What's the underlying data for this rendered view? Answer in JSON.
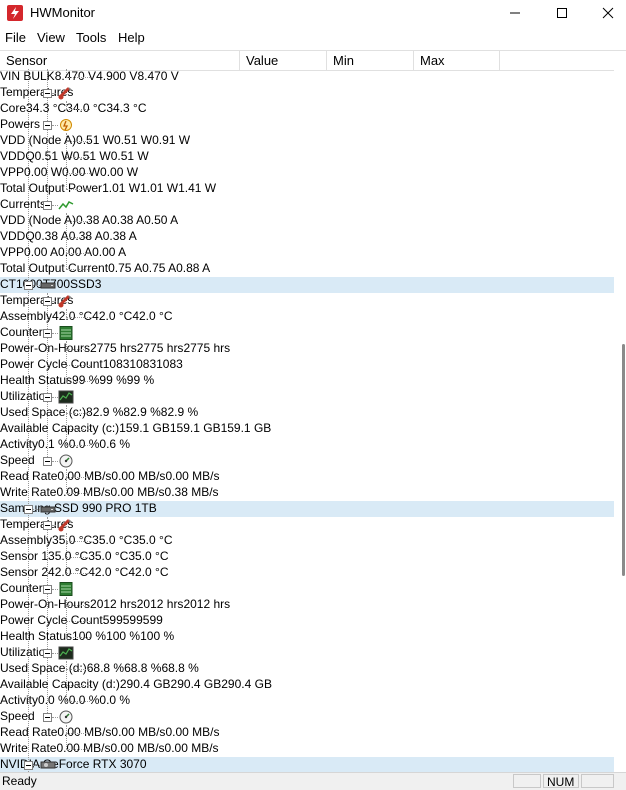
{
  "window": {
    "title": "HWMonitor"
  },
  "menu": [
    "File",
    "View",
    "Tools",
    "Help"
  ],
  "columns": {
    "sensor": "Sensor",
    "value": "Value",
    "min": "Min",
    "max": "Max"
  },
  "rows": [
    {
      "label": "VIN BULK",
      "level": 3,
      "value": "8.470 V",
      "min": "4.900 V",
      "max": "8.470 V"
    },
    {
      "label": "Temperatures",
      "level": 2,
      "icon": "thermometer-icon"
    },
    {
      "label": "Core",
      "level": 3,
      "value": "34.3 °C",
      "min": "34.0 °C",
      "max": "34.3 °C"
    },
    {
      "label": "Powers",
      "level": 2,
      "icon": "power-icon"
    },
    {
      "label": "VDD (Node A)",
      "level": 3,
      "value": "0.51 W",
      "min": "0.51 W",
      "max": "0.91 W"
    },
    {
      "label": "VDDQ",
      "level": 3,
      "value": "0.51 W",
      "min": "0.51 W",
      "max": "0.51 W"
    },
    {
      "label": "VPP",
      "level": 3,
      "value": "0.00 W",
      "min": "0.00 W",
      "max": "0.00 W"
    },
    {
      "label": "Total Output Power",
      "level": 3,
      "value": "1.01 W",
      "min": "1.01 W",
      "max": "1.41 W"
    },
    {
      "label": "Currents",
      "level": 2,
      "icon": "current-icon"
    },
    {
      "label": "VDD (Node A)",
      "level": 3,
      "value": "0.38 A",
      "min": "0.38 A",
      "max": "0.50 A"
    },
    {
      "label": "VDDQ",
      "level": 3,
      "value": "0.38 A",
      "min": "0.38 A",
      "max": "0.38 A"
    },
    {
      "label": "VPP",
      "level": 3,
      "value": "0.00 A",
      "min": "0.00 A",
      "max": "0.00 A"
    },
    {
      "label": "Total Output Current",
      "level": 3,
      "value": "0.75 A",
      "min": "0.75 A",
      "max": "0.88 A"
    },
    {
      "label": "CT1000T700SSD3",
      "level": 1,
      "icon": "drive-icon",
      "highlight": true
    },
    {
      "label": "Temperatures",
      "level": 2,
      "icon": "thermometer-icon"
    },
    {
      "label": "Assembly",
      "level": 3,
      "value": "42.0 °C",
      "min": "42.0 °C",
      "max": "42.0 °C"
    },
    {
      "label": "Counters",
      "level": 2,
      "icon": "counter-icon"
    },
    {
      "label": "Power-On-Hours",
      "level": 3,
      "value": "2775 hrs",
      "min": "2775 hrs",
      "max": "2775 hrs"
    },
    {
      "label": "Power Cycle Count",
      "level": 3,
      "value": "1083",
      "min": "1083",
      "max": "1083"
    },
    {
      "label": "Health Status",
      "level": 3,
      "value": "99 %",
      "min": "99 %",
      "max": "99 %"
    },
    {
      "label": "Utilization",
      "level": 2,
      "icon": "utilization-icon"
    },
    {
      "label": "Used Space (c:)",
      "level": 3,
      "value": "82.9 %",
      "min": "82.9 %",
      "max": "82.9 %"
    },
    {
      "label": "Available Capacity (c:)",
      "level": 3,
      "value": "159.1 GB",
      "min": "159.1 GB",
      "max": "159.1 GB"
    },
    {
      "label": "Activity",
      "level": 3,
      "value": "0.1 %",
      "min": "0.0 %",
      "max": "0.6 %"
    },
    {
      "label": "Speed",
      "level": 2,
      "icon": "speed-icon"
    },
    {
      "label": "Read Rate",
      "level": 3,
      "value": "0.00 MB/s",
      "min": "0.00 MB/s",
      "max": "0.00 MB/s"
    },
    {
      "label": "Write Rate",
      "level": 3,
      "value": "0.09 MB/s",
      "min": "0.00 MB/s",
      "max": "0.38 MB/s"
    },
    {
      "label": "Samsung SSD 990 PRO 1TB",
      "level": 1,
      "icon": "drive-icon",
      "highlight": true
    },
    {
      "label": "Temperatures",
      "level": 2,
      "icon": "thermometer-icon"
    },
    {
      "label": "Assembly",
      "level": 3,
      "value": "35.0 °C",
      "min": "35.0 °C",
      "max": "35.0 °C"
    },
    {
      "label": "Sensor 1",
      "level": 3,
      "value": "35.0 °C",
      "min": "35.0 °C",
      "max": "35.0 °C"
    },
    {
      "label": "Sensor 2",
      "level": 3,
      "value": "42.0 °C",
      "min": "42.0 °C",
      "max": "42.0 °C"
    },
    {
      "label": "Counters",
      "level": 2,
      "icon": "counter-icon"
    },
    {
      "label": "Power-On-Hours",
      "level": 3,
      "value": "2012 hrs",
      "min": "2012 hrs",
      "max": "2012 hrs"
    },
    {
      "label": "Power Cycle Count",
      "level": 3,
      "value": "599",
      "min": "599",
      "max": "599"
    },
    {
      "label": "Health Status",
      "level": 3,
      "value": "100 %",
      "min": "100 %",
      "max": "100 %"
    },
    {
      "label": "Utilization",
      "level": 2,
      "icon": "utilization-icon"
    },
    {
      "label": "Used Space (d:)",
      "level": 3,
      "value": "68.8 %",
      "min": "68.8 %",
      "max": "68.8 %"
    },
    {
      "label": "Available Capacity (d:)",
      "level": 3,
      "value": "290.4 GB",
      "min": "290.4 GB",
      "max": "290.4 GB"
    },
    {
      "label": "Activity",
      "level": 3,
      "value": "0.0 %",
      "min": "0.0 %",
      "max": "0.0 %"
    },
    {
      "label": "Speed",
      "level": 2,
      "icon": "speed-icon"
    },
    {
      "label": "Read Rate",
      "level": 3,
      "value": "0.00 MB/s",
      "min": "0.00 MB/s",
      "max": "0.00 MB/s"
    },
    {
      "label": "Write Rate",
      "level": 3,
      "value": "0.00 MB/s",
      "min": "0.00 MB/s",
      "max": "0.00 MB/s"
    },
    {
      "label": "NVIDIA GeForce RTX 3070",
      "level": 1,
      "icon": "gpu-icon",
      "highlight": true
    }
  ],
  "status": {
    "text": "Ready",
    "num": "NUM"
  }
}
